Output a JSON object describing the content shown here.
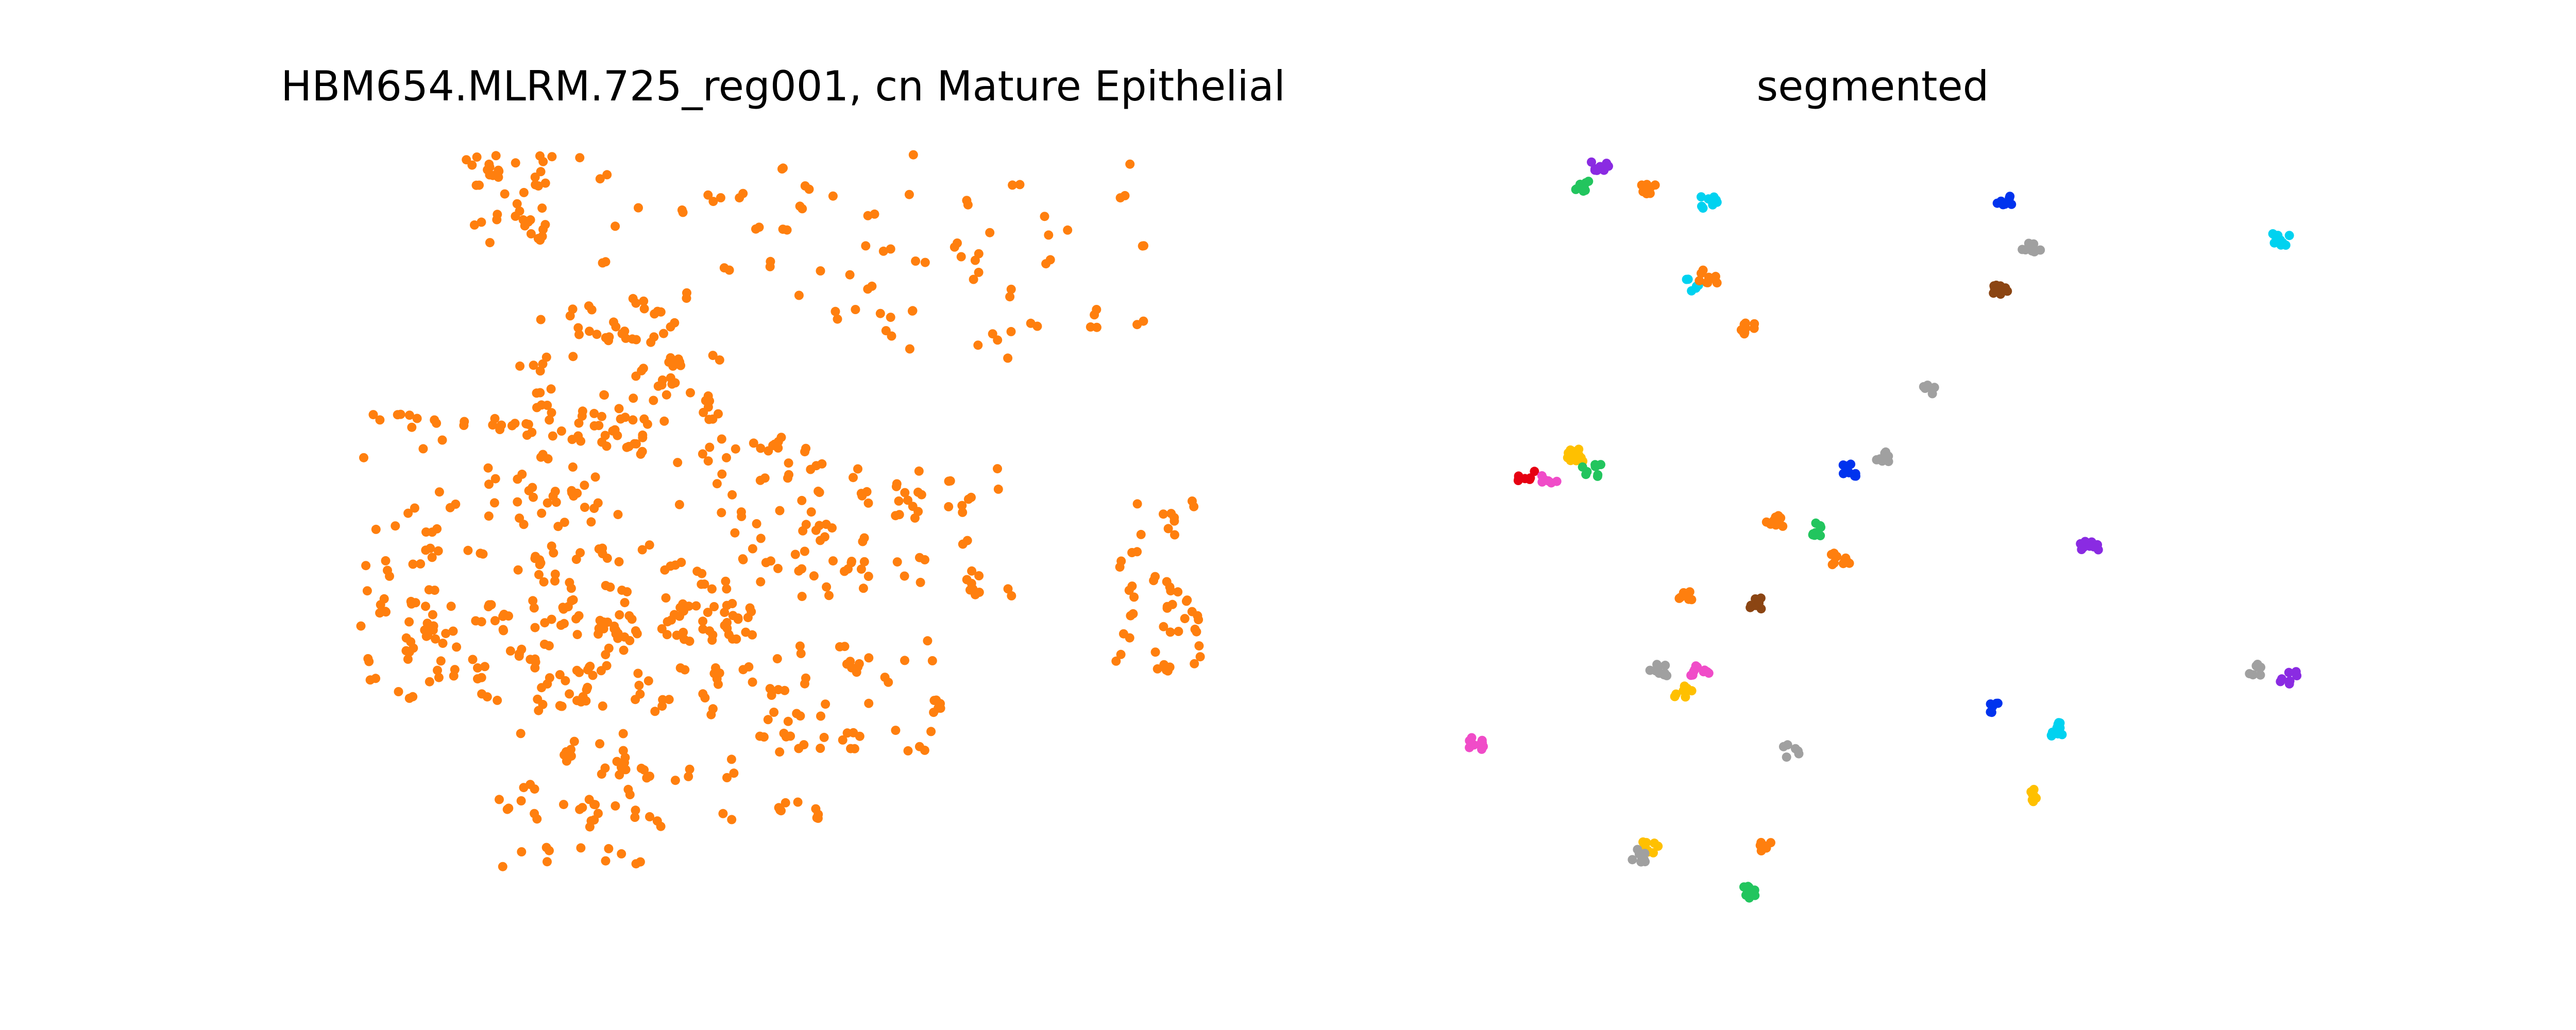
{
  "chart_data": [
    {
      "type": "scatter",
      "title": "HBM654.MLRM.725_reg001, cn Mature Epithelial",
      "axes_visible": false,
      "grid": false,
      "xlim": [
        0,
        100
      ],
      "ylim": [
        0,
        100
      ],
      "marker_color": "#ff7f0e",
      "point_count": 600,
      "generator_seed": 654,
      "density_regions": [
        {
          "x": [
            12,
            24
          ],
          "y": [
            88,
            100
          ],
          "weight": 30
        },
        {
          "x": [
            20,
            95
          ],
          "y": [
            72,
            100
          ],
          "weight": 70
        },
        {
          "x": [
            18,
            45
          ],
          "y": [
            62,
            82
          ],
          "weight": 60
        },
        {
          "x": [
            0,
            30
          ],
          "y": [
            35,
            65
          ],
          "weight": 80
        },
        {
          "x": [
            25,
            55
          ],
          "y": [
            35,
            62
          ],
          "weight": 90
        },
        {
          "x": [
            55,
            78
          ],
          "y": [
            40,
            58
          ],
          "weight": 40
        },
        {
          "x": [
            90,
            100
          ],
          "y": [
            30,
            55
          ],
          "weight": 40
        },
        {
          "x": [
            0,
            20
          ],
          "y": [
            25,
            40
          ],
          "weight": 40
        },
        {
          "x": [
            18,
            45
          ],
          "y": [
            25,
            40
          ],
          "weight": 60
        },
        {
          "x": [
            45,
            70
          ],
          "y": [
            18,
            35
          ],
          "weight": 40
        },
        {
          "x": [
            15,
            35
          ],
          "y": [
            3,
            22
          ],
          "weight": 40
        },
        {
          "x": [
            30,
            55
          ],
          "y": [
            10,
            25
          ],
          "weight": 30
        }
      ]
    },
    {
      "type": "scatter",
      "title": "segmented",
      "axes_visible": false,
      "grid": false,
      "xlim": [
        0,
        100
      ],
      "ylim": [
        0,
        100
      ],
      "clusters": [
        {
          "x": 16.5,
          "y": 98.5,
          "color": "#8a2be2"
        },
        {
          "x": 14.5,
          "y": 95.5,
          "color": "#22c55e"
        },
        {
          "x": 22.5,
          "y": 95.5,
          "color": "#ff7f0e"
        },
        {
          "x": 29.5,
          "y": 93.5,
          "color": "#00d2f0"
        },
        {
          "x": 65.5,
          "y": 93.5,
          "color": "#0033ee"
        },
        {
          "x": 68.5,
          "y": 87.5,
          "color": "#a0a0a0"
        },
        {
          "x": 98.5,
          "y": 88.5,
          "color": "#00d2f0"
        },
        {
          "x": 27.5,
          "y": 82.5,
          "color": "#00d2f0"
        },
        {
          "x": 29.5,
          "y": 83.5,
          "color": "#ff7f0e"
        },
        {
          "x": 64.5,
          "y": 81.5,
          "color": "#8b4513"
        },
        {
          "x": 34.5,
          "y": 76.5,
          "color": "#ff7f0e"
        },
        {
          "x": 56.5,
          "y": 68.5,
          "color": "#a0a0a0"
        },
        {
          "x": 13.5,
          "y": 59.5,
          "color": "#ffc000"
        },
        {
          "x": 7.5,
          "y": 56.5,
          "color": "#e60012"
        },
        {
          "x": 10.5,
          "y": 56.5,
          "color": "#f04cc8"
        },
        {
          "x": 15.5,
          "y": 57.5,
          "color": "#22c55e"
        },
        {
          "x": 46.5,
          "y": 57.5,
          "color": "#0033ee"
        },
        {
          "x": 50.5,
          "y": 59.5,
          "color": "#a0a0a0"
        },
        {
          "x": 37.5,
          "y": 50.5,
          "color": "#ff7f0e"
        },
        {
          "x": 42.5,
          "y": 49.5,
          "color": "#22c55e"
        },
        {
          "x": 45.5,
          "y": 45.5,
          "color": "#ff7f0e"
        },
        {
          "x": 75.5,
          "y": 47.5,
          "color": "#8a2be2"
        },
        {
          "x": 26.5,
          "y": 40.5,
          "color": "#ff7f0e"
        },
        {
          "x": 35.5,
          "y": 39.5,
          "color": "#8b4513"
        },
        {
          "x": 23.5,
          "y": 30.5,
          "color": "#a0a0a0"
        },
        {
          "x": 28.5,
          "y": 30.5,
          "color": "#f04cc8"
        },
        {
          "x": 26.5,
          "y": 27.5,
          "color": "#ffc000"
        },
        {
          "x": 95.5,
          "y": 30.5,
          "color": "#a0a0a0"
        },
        {
          "x": 99.5,
          "y": 29.5,
          "color": "#8a2be2"
        },
        {
          "x": 63.5,
          "y": 25.5,
          "color": "#0033ee"
        },
        {
          "x": 71.5,
          "y": 22.5,
          "color": "#00d2f0"
        },
        {
          "x": 1.5,
          "y": 20.5,
          "color": "#f04cc8"
        },
        {
          "x": 39.5,
          "y": 19.5,
          "color": "#a0a0a0"
        },
        {
          "x": 69.5,
          "y": 13.5,
          "color": "#ffc000"
        },
        {
          "x": 22.5,
          "y": 6.5,
          "color": "#ffc000"
        },
        {
          "x": 21.5,
          "y": 5.5,
          "color": "#a0a0a0"
        },
        {
          "x": 36.5,
          "y": 6.5,
          "color": "#ff7f0e"
        },
        {
          "x": 34.5,
          "y": 0.5,
          "color": "#22c55e"
        }
      ]
    }
  ]
}
